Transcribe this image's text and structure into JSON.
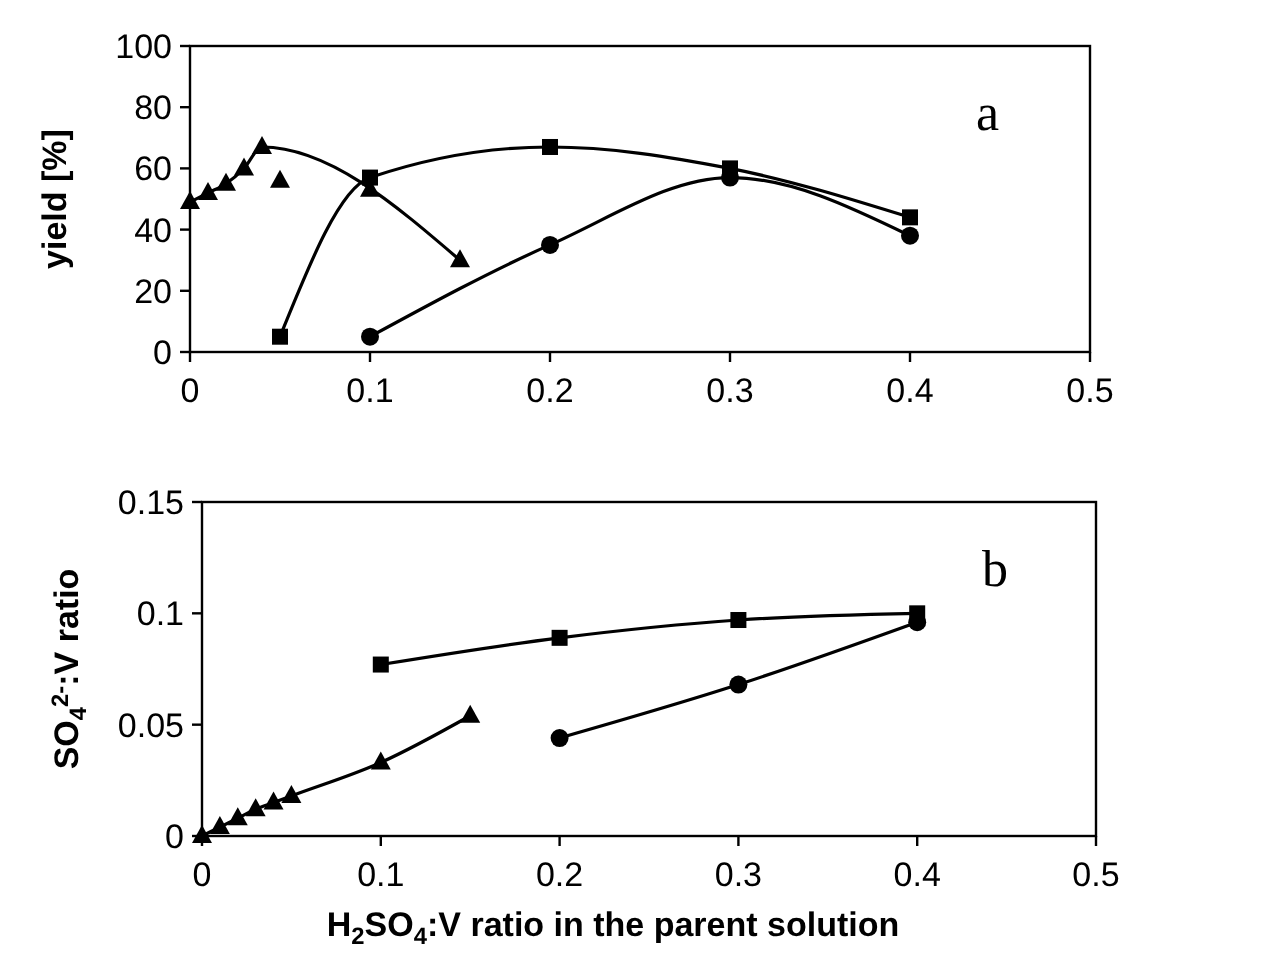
{
  "chart_data": [
    {
      "type": "line",
      "ylabel": "yield [%]",
      "xlim": [
        0,
        0.5
      ],
      "xticks": [
        0,
        0.1,
        0.2,
        0.3,
        0.4,
        0.5
      ],
      "ylim": [
        0,
        100
      ],
      "yticks": [
        0,
        20,
        40,
        60,
        80,
        100
      ],
      "grid": false,
      "annotations": [
        "a"
      ],
      "series": [
        {
          "marker": "triangle",
          "color": "#000000",
          "x": [
            0,
            0.01,
            0.02,
            0.03,
            0.04,
            0.15
          ],
          "values": [
            49,
            52,
            55,
            60,
            67,
            30
          ]
        },
        {
          "type": "scatter",
          "marker": "triangle",
          "color": "#000000",
          "x": [
            0.05,
            0.1
          ],
          "values": [
            56,
            53
          ]
        },
        {
          "marker": "square",
          "color": "#000000",
          "x": [
            0.05,
            0.1,
            0.2,
            0.3,
            0.4
          ],
          "values": [
            5,
            57,
            67,
            60,
            44
          ]
        },
        {
          "marker": "circle",
          "color": "#000000",
          "x": [
            0.1,
            0.2,
            0.3,
            0.4
          ],
          "values": [
            5,
            35,
            57,
            38
          ]
        }
      ]
    },
    {
      "type": "line",
      "xlabel": "H$_{2}$SO$_{4}$:V ratio in the parent solution",
      "ylabel": "SO$_{4}$$^{2-}$:V ratio",
      "xlim": [
        0,
        0.5
      ],
      "xticks": [
        0,
        0.1,
        0.2,
        0.3,
        0.4,
        0.5
      ],
      "ylim": [
        0,
        0.15
      ],
      "yticks": [
        0,
        0.05,
        0.1,
        0.15
      ],
      "grid": false,
      "annotations": [
        "b"
      ],
      "series": [
        {
          "marker": "triangle",
          "color": "#000000",
          "x": [
            0,
            0.01,
            0.02,
            0.03,
            0.04,
            0.05,
            0.1,
            0.15
          ],
          "values": [
            0,
            0.004,
            0.008,
            0.012,
            0.015,
            0.018,
            0.033,
            0.054
          ]
        },
        {
          "marker": "square",
          "color": "#000000",
          "x": [
            0.1,
            0.2,
            0.3,
            0.4
          ],
          "values": [
            0.077,
            0.089,
            0.097,
            0.1
          ]
        },
        {
          "marker": "circle",
          "color": "#000000",
          "x": [
            0.2,
            0.3,
            0.4
          ],
          "values": [
            0.044,
            0.068,
            0.096
          ]
        }
      ]
    }
  ]
}
